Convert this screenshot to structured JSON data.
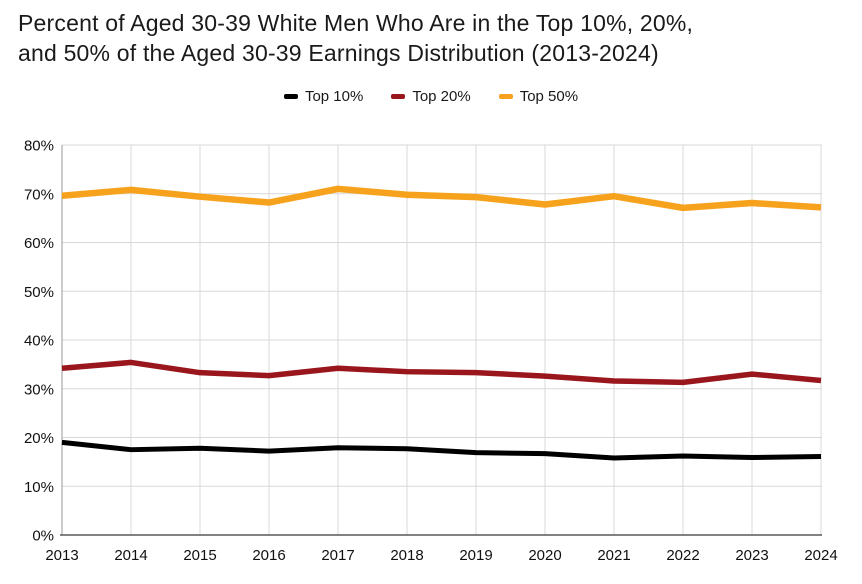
{
  "header": {
    "title_lines": [
      "Percent of Aged 30-39 White Men Who Are in the Top 10%, 20%,",
      "and 50% of the Aged 30-39 Earnings Distribution (2013-2024)"
    ]
  },
  "legend": {
    "items": [
      {
        "label": "Top 10%",
        "color": "#000000"
      },
      {
        "label": "Top 20%",
        "color": "#9a161d"
      },
      {
        "label": "Top 50%",
        "color": "#f6a21d"
      }
    ]
  },
  "chart_data": {
    "type": "line",
    "title": "Percent of Aged 30-39 White Men Who Are in the Top 10%, 20%, and 50% of the Aged 30-39 Earnings Distribution (2013-2024)",
    "categories": [
      "2013",
      "2014",
      "2015",
      "2016",
      "2017",
      "2018",
      "2019",
      "2020",
      "2021",
      "2022",
      "2023",
      "2024"
    ],
    "series": [
      {
        "name": "Top 10%",
        "color": "#000000",
        "stroke_width": 5,
        "values": [
          19.0,
          17.5,
          17.8,
          17.2,
          17.9,
          17.7,
          16.9,
          16.7,
          15.8,
          16.2,
          15.9,
          16.1
        ]
      },
      {
        "name": "Top 20%",
        "color": "#9a161d",
        "stroke_width": 5.5,
        "values": [
          34.2,
          35.4,
          33.3,
          32.7,
          34.2,
          33.5,
          33.3,
          32.6,
          31.6,
          31.3,
          33.0,
          31.7
        ]
      },
      {
        "name": "Top 50%",
        "color": "#f6a21d",
        "stroke_width": 6.5,
        "values": [
          69.6,
          70.8,
          69.4,
          68.2,
          71.0,
          69.8,
          69.3,
          67.8,
          69.5,
          67.1,
          68.1,
          67.2
        ]
      }
    ],
    "xlabel": "",
    "ylabel": "",
    "ylim": [
      0,
      80
    ],
    "ytick_step": 10,
    "ytick_suffix": "%",
    "ytick_labels": [
      "0%",
      "10%",
      "20%",
      "30%",
      "40%",
      "50%",
      "60%",
      "70%",
      "80%"
    ],
    "grid": true,
    "legend_position": "top",
    "grid_color": "#d9d9d9",
    "axis_color": "#595959",
    "left_axis_color": "#999999",
    "text_color": "#111111"
  }
}
